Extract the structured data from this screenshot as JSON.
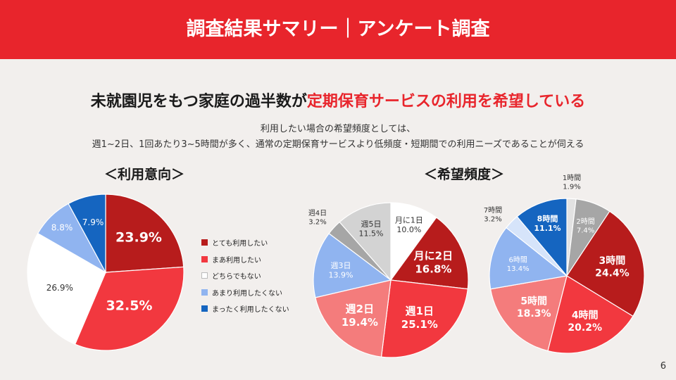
{
  "header": {
    "title": "調査結果サマリー｜アンケート調査"
  },
  "headline": {
    "part1": "未就園児をもつ家庭の過半数が",
    "part2": "定期保育サービスの利用を希望している"
  },
  "subtext": {
    "line1": "利用したい場合の希望頻度としては、",
    "line2": "週1~2日、1回あたり3~5時間が多く、通常の定期保育サービスより低頻度・短期間での利用ニーズであることが伺える"
  },
  "page_number": "6",
  "chart_data": [
    {
      "type": "pie",
      "title": "＜利用意向＞",
      "categories": [
        "とても利用したい",
        "まあ利用したい",
        "どちらでもない",
        "あまり利用したくない",
        "まったく利用したくない"
      ],
      "values": [
        23.9,
        32.5,
        26.9,
        8.8,
        7.9
      ],
      "labels": [
        "23.9%",
        "32.5%",
        "26.9%",
        "8.8%",
        "7.9%"
      ],
      "colors": [
        "#b71c1c",
        "#f2383f",
        "#ffffff",
        "#90b4f0",
        "#1565c0"
      ],
      "label_colors": [
        "#ffffff",
        "#ffffff",
        "#333333",
        "#ffffff",
        "#ffffff"
      ],
      "legend": "right"
    },
    {
      "type": "pie",
      "title": "＜希望頻度＞",
      "categories": [
        "月に1日",
        "月に2日",
        "週1日",
        "週2日",
        "週3日",
        "週4日",
        "週5日"
      ],
      "values": [
        10.0,
        16.8,
        25.1,
        19.4,
        13.9,
        3.2,
        11.5
      ],
      "labels": [
        "10.0%",
        "16.8%",
        "25.1%",
        "19.4%",
        "13.9%",
        "3.2%",
        "11.5%"
      ],
      "colors": [
        "#ffffff",
        "#b71c1c",
        "#f2383f",
        "#f47c7c",
        "#90b4f0",
        "#a6a6a6",
        "#d3d3d3"
      ],
      "label_colors": [
        "#333333",
        "#ffffff",
        "#ffffff",
        "#ffffff",
        "#ffffff",
        "#333333",
        "#333333"
      ]
    },
    {
      "type": "pie",
      "title": "",
      "categories": [
        "1時間",
        "2時間",
        "3時間",
        "4時間",
        "5時間",
        "6時間",
        "7時間",
        "8時間"
      ],
      "values": [
        1.9,
        7.4,
        24.4,
        20.2,
        18.3,
        13.4,
        3.2,
        11.1
      ],
      "labels": [
        "1.9%",
        "7.4%",
        "24.4%",
        "20.2%",
        "18.3%",
        "13.4%",
        "3.2%",
        "11.1%"
      ],
      "colors": [
        "#e2e2e2",
        "#a6a6a6",
        "#b71c1c",
        "#f2383f",
        "#f47c7c",
        "#90b4f0",
        "#d6e4fa",
        "#1565c0"
      ],
      "label_colors": [
        "#333333",
        "#ffffff",
        "#ffffff",
        "#ffffff",
        "#ffffff",
        "#ffffff",
        "#333333",
        "#ffffff"
      ]
    }
  ]
}
